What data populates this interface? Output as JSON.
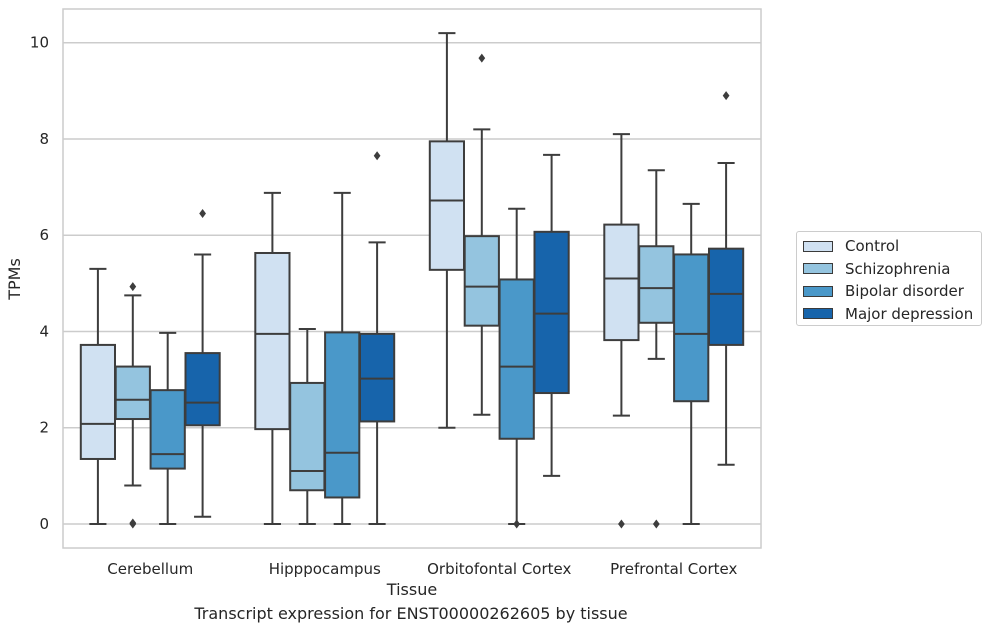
{
  "chart_data": {
    "type": "box",
    "xlabel": "Tissue",
    "ylabel": "TPMs",
    "caption": "Transcript expression for ENST00000262605 by tissue",
    "ylim": [
      -0.5,
      10.7
    ],
    "yticks": [
      0,
      2,
      4,
      6,
      8,
      10
    ],
    "grid": "horizontal",
    "legend_placement": "outside-right",
    "categories": [
      "Cerebellum",
      "Hipppocampus",
      "Orbitofontal Cortex",
      "Prefrontal Cortex"
    ],
    "series": [
      {
        "name": "Control",
        "color": "#d0e1f2",
        "boxes": [
          {
            "whislo": 0.0,
            "q1": 1.35,
            "med": 2.08,
            "q3": 3.72,
            "whishi": 5.3,
            "fliers": []
          },
          {
            "whislo": 0.0,
            "q1": 1.97,
            "med": 3.95,
            "q3": 5.63,
            "whishi": 6.88,
            "fliers": []
          },
          {
            "whislo": 2.0,
            "q1": 5.28,
            "med": 6.72,
            "q3": 7.95,
            "whishi": 10.2,
            "fliers": []
          },
          {
            "whislo": 2.25,
            "q1": 3.82,
            "med": 5.1,
            "q3": 6.22,
            "whishi": 8.1,
            "fliers": [
              0.0
            ]
          }
        ]
      },
      {
        "name": "Schizophrenia",
        "color": "#94c4df",
        "boxes": [
          {
            "whislo": 0.8,
            "q1": 2.18,
            "med": 2.58,
            "q3": 3.27,
            "whishi": 4.75,
            "fliers": [
              4.93,
              0.02,
              0.0
            ]
          },
          {
            "whislo": 0.0,
            "q1": 0.7,
            "med": 1.1,
            "q3": 2.93,
            "whishi": 4.05,
            "fliers": []
          },
          {
            "whislo": 2.27,
            "q1": 4.12,
            "med": 4.93,
            "q3": 5.98,
            "whishi": 8.2,
            "fliers": [
              9.68
            ]
          },
          {
            "whislo": 3.43,
            "q1": 4.18,
            "med": 4.9,
            "q3": 5.77,
            "whishi": 7.35,
            "fliers": [
              0.0
            ]
          }
        ]
      },
      {
        "name": "Bipolar disorder",
        "color": "#4a98c9",
        "boxes": [
          {
            "whislo": 0.0,
            "q1": 1.15,
            "med": 1.45,
            "q3": 2.78,
            "whishi": 3.97,
            "fliers": []
          },
          {
            "whislo": 0.0,
            "q1": 0.55,
            "med": 1.48,
            "q3": 3.98,
            "whishi": 6.88,
            "fliers": []
          },
          {
            "whislo": 0.0,
            "q1": 1.77,
            "med": 3.27,
            "q3": 5.08,
            "whishi": 6.55,
            "fliers": [
              0.0
            ]
          },
          {
            "whislo": 0.0,
            "q1": 2.55,
            "med": 3.95,
            "q3": 5.6,
            "whishi": 6.65,
            "fliers": []
          }
        ]
      },
      {
        "name": "Major depression",
        "color": "#1764ab",
        "boxes": [
          {
            "whislo": 0.15,
            "q1": 2.05,
            "med": 2.52,
            "q3": 3.55,
            "whishi": 5.6,
            "fliers": [
              6.45
            ]
          },
          {
            "whislo": 0.0,
            "q1": 2.13,
            "med": 3.02,
            "q3": 3.95,
            "whishi": 5.85,
            "fliers": [
              7.65
            ]
          },
          {
            "whislo": 1.0,
            "q1": 2.72,
            "med": 4.37,
            "q3": 6.07,
            "whishi": 7.67,
            "fliers": []
          },
          {
            "whislo": 1.23,
            "q1": 3.72,
            "med": 4.78,
            "q3": 5.72,
            "whishi": 7.5,
            "fliers": [
              8.9
            ]
          }
        ]
      }
    ]
  }
}
